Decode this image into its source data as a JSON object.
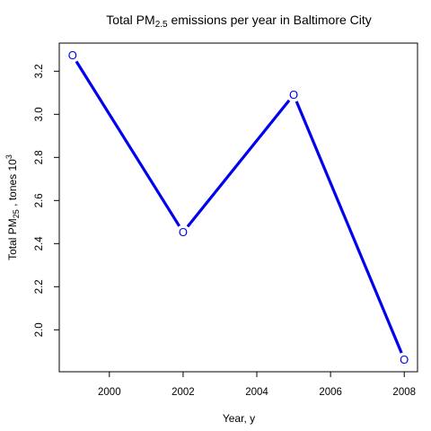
{
  "chart_data": {
    "type": "line",
    "title": {
      "prefix": "Total PM",
      "subscript": "2.5",
      "suffix": " emissions per year in Baltimore City"
    },
    "xlabel": "Year, y",
    "ylabel": {
      "prefix": "Total PM",
      "subscript": "25",
      "middle": " , tones 10",
      "superscript": "3"
    },
    "x": [
      1999,
      2002,
      2005,
      2008
    ],
    "y": [
      3.274,
      2.453,
      3.091,
      1.862
    ],
    "point_marker": "O",
    "xlim": [
      1998.64,
      2008.36
    ],
    "ylim": [
      1.8055,
      3.3305
    ],
    "xticks": [
      2000,
      2002,
      2004,
      2006,
      2008
    ],
    "yticks": [
      2.0,
      2.2,
      2.4,
      2.6,
      2.8,
      3.0,
      3.2
    ],
    "ytick_labels": [
      "2.0",
      "2.2",
      "2.4",
      "2.6",
      "2.8",
      "3.0",
      "3.2"
    ],
    "line_color": "#0000ee",
    "marker_color": "#0000ee",
    "grid": false,
    "legend": "none"
  }
}
